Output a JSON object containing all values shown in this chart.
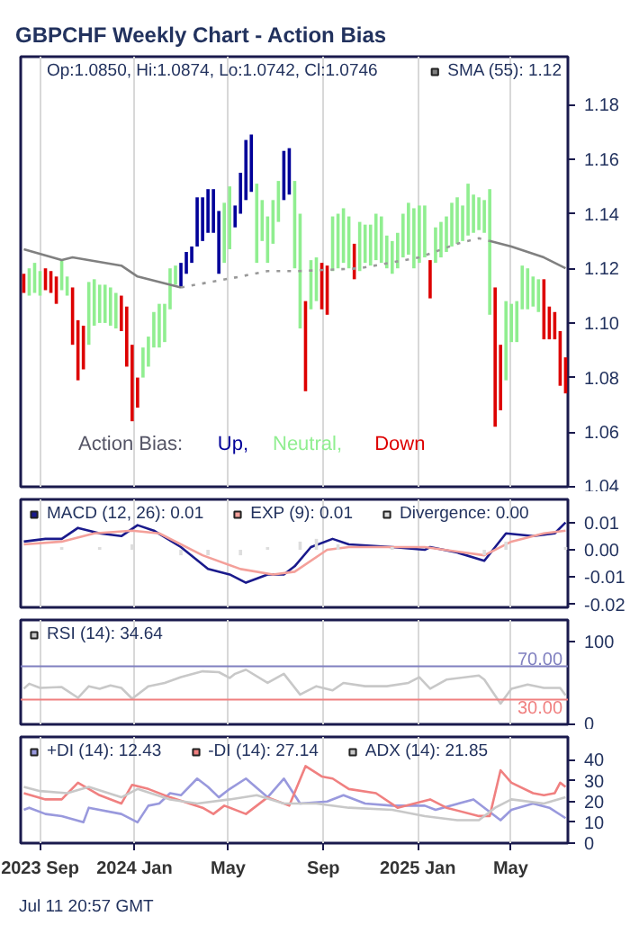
{
  "chart_data": [
    {
      "type": "bar",
      "title": "GBPCHF Weekly Chart - Action Bias",
      "legend": "top right",
      "legend_title": "Action Bias:",
      "grid": "x",
      "tick_labels": "y",
      "annotations": [
        "Op:1.0850, Hi:1.0874, Lo:1.0742, Cl:1.0746"
      ],
      "xlim": [
        "2023-08-07",
        "2025-07-14"
      ],
      "xticks": [
        {
          "value": "2023-09-01",
          "label": null
        },
        {
          "value": "2024-01-01",
          "label": null
        },
        {
          "value": "2024-05-01",
          "label": null
        },
        {
          "value": "2024-09-01",
          "label": null
        },
        {
          "value": "2025-01-01",
          "label": null
        },
        {
          "value": "2025-05-01",
          "label": null
        }
      ],
      "ylim": [
        1.04,
        1.1975
      ],
      "yticks": [
        1.04,
        1.06,
        1.08,
        {
          "value": 1.1,
          "label": "1.10"
        },
        1.12,
        1.14,
        1.16,
        1.18
      ],
      "series": [
        {
          "name": "Up,",
          "color": "#000099",
          "x": [
            "2024-03-01",
            "2024-03-08",
            "2024-03-15",
            "2024-03-22",
            "2024-03-29",
            "2024-04-05",
            "2024-04-12",
            "2024-04-19",
            "2024-05-10",
            "2024-05-17",
            "2024-05-24",
            "2024-05-31",
            "2024-07-12",
            "2024-07-19"
          ],
          "base": [
            1.113,
            1.118,
            1.122,
            1.128,
            1.13,
            1.133,
            1.133,
            1.118,
            1.135,
            1.14,
            1.145,
            1.148,
            1.145,
            1.147
          ],
          "values": [
            0.009,
            0.008,
            0.006,
            0.018,
            0.016,
            0.016,
            0.016,
            0.023,
            0.008,
            0.015,
            0.022,
            0.021,
            0.018,
            0.017
          ]
        },
        {
          "name": "Neutral,",
          "color": "#90ee90",
          "x": [
            "2023-08-18",
            "2023-08-25",
            "2023-09-01",
            "2023-09-29",
            "2023-10-06",
            "2023-11-03",
            "2023-11-10",
            "2023-11-17",
            "2023-11-24",
            "2023-12-01",
            "2023-12-08",
            "2024-01-12",
            "2024-01-19",
            "2024-01-26",
            "2024-02-02",
            "2024-02-09",
            "2024-02-16",
            "2024-02-23",
            "2024-04-26",
            "2024-05-03",
            "2024-06-07",
            "2024-06-14",
            "2024-06-21",
            "2024-06-28",
            "2024-07-05",
            "2024-07-26",
            "2024-08-02",
            "2024-08-16",
            "2024-08-23",
            "2024-09-13",
            "2024-09-20",
            "2024-09-27",
            "2024-10-04",
            "2024-10-18",
            "2024-10-25",
            "2024-11-01",
            "2024-11-08",
            "2024-11-15",
            "2024-11-22",
            "2024-11-29",
            "2024-12-06",
            "2024-12-13",
            "2024-12-20",
            "2024-12-27",
            "2025-01-03",
            "2025-01-10",
            "2025-01-24",
            "2025-01-31",
            "2025-02-07",
            "2025-02-14",
            "2025-02-21",
            "2025-02-28",
            "2025-03-07",
            "2025-03-14",
            "2025-03-21",
            "2025-03-28",
            "2025-04-04",
            "2025-04-25",
            "2025-05-02",
            "2025-05-09",
            "2025-05-16",
            "2025-05-23",
            "2025-05-30",
            "2025-06-06"
          ],
          "base": [
            1.11,
            1.111,
            1.11,
            1.112,
            1.11,
            1.092,
            1.099,
            1.1,
            1.1,
            1.099,
            1.098,
            1.08,
            1.084,
            1.091,
            1.091,
            1.093,
            1.105,
            1.114,
            1.122,
            1.127,
            1.122,
            1.13,
            1.122,
            1.129,
            1.137,
            1.12,
            1.098,
            1.105,
            1.108,
            1.119,
            1.12,
            1.122,
            1.12,
            1.119,
            1.122,
            1.121,
            1.123,
            1.122,
            1.12,
            1.118,
            1.12,
            1.124,
            1.125,
            1.12,
            1.122,
            1.124,
            1.122,
            1.124,
            1.126,
            1.128,
            1.129,
            1.13,
            1.132,
            1.133,
            1.134,
            1.133,
            1.103,
            1.079,
            1.093,
            1.093,
            1.105,
            1.105,
            1.106,
            1.104
          ],
          "values": [
            0.01,
            0.011,
            0.009,
            0.011,
            0.007,
            0.023,
            0.017,
            0.014,
            0.014,
            0.014,
            0.013,
            0.011,
            0.011,
            0.013,
            0.016,
            0.014,
            0.015,
            0.007,
            0.022,
            0.023,
            0.029,
            0.015,
            0.017,
            0.016,
            0.015,
            0.032,
            0.042,
            0.018,
            0.016,
            0.02,
            0.02,
            0.02,
            0.019,
            0.018,
            0.014,
            0.015,
            0.017,
            0.017,
            0.012,
            0.012,
            0.013,
            0.016,
            0.019,
            0.022,
            0.021,
            0.019,
            0.013,
            0.013,
            0.013,
            0.016,
            0.017,
            0.013,
            0.019,
            0.014,
            0.012,
            0.012,
            0.046,
            0.029,
            0.014,
            0.015,
            0.016,
            0.015,
            0.011,
            0.012
          ]
        },
        {
          "name": "Down",
          "color": "#dd0000",
          "x": [
            "2023-08-11",
            "2023-09-08",
            "2023-09-15",
            "2023-09-22",
            "2023-10-13",
            "2023-10-20",
            "2023-10-27",
            "2023-12-15",
            "2023-12-22",
            "2023-12-29",
            "2024-01-05",
            "2024-08-09",
            "2024-08-30",
            "2024-09-06",
            "2024-10-11",
            "2025-01-17",
            "2025-04-11",
            "2025-04-18",
            "2025-06-13",
            "2025-06-20",
            "2025-06-27",
            "2025-07-04",
            "2025-07-11"
          ],
          "base": [
            1.111,
            1.112,
            1.111,
            1.107,
            1.092,
            1.079,
            1.083,
            1.097,
            1.084,
            1.064,
            1.069,
            1.075,
            1.105,
            1.103,
            1.116,
            1.109,
            1.062,
            1.068,
            1.094,
            1.094,
            1.094,
            1.077,
            1.0742
          ],
          "values": [
            0.007,
            0.008,
            0.008,
            0.01,
            0.021,
            0.022,
            0.016,
            0.013,
            0.022,
            0.028,
            0.011,
            0.033,
            0.017,
            0.018,
            0.013,
            0.014,
            0.051,
            0.024,
            0.022,
            0.012,
            0.01,
            0.02,
            0.0132
          ]
        },
        {
          "type": "line",
          "name": "SMA (55): 1.12",
          "color": "#808080",
          "x": [
            "2023-08-11",
            "2023-09-29",
            "2023-10-13",
            "2023-12-15",
            "2024-01-05",
            "2024-03-01"
          ],
          "values": [
            1.127,
            1.123,
            1.124,
            1.121,
            1.117,
            1.113
          ]
        },
        {
          "type": "line",
          "color": "#999999",
          "line_style": "dotted",
          "x": [
            "2024-03-01",
            "2024-05-17",
            "2024-06-21",
            "2024-08-02",
            "2024-10-18",
            "2025-01-03",
            "2025-02-21",
            "2025-03-21",
            "2025-04-04"
          ],
          "values": [
            1.113,
            1.117,
            1.119,
            1.119,
            1.12,
            1.124,
            1.129,
            1.131,
            1.13
          ]
        },
        {
          "type": "line",
          "color": "#808080",
          "x": [
            "2025-04-04",
            "2025-05-02",
            "2025-06-13",
            "2025-07-11"
          ],
          "values": [
            1.13,
            1.128,
            1.124,
            1.12
          ]
        }
      ]
    },
    {
      "type": "line",
      "legend": "top left",
      "grid": "x",
      "tick_labels": "y",
      "xlim": [
        "2023-08-07",
        "2025-07-14"
      ],
      "xticks": [
        {
          "value": "2023-09-01",
          "label": null
        },
        {
          "value": "2024-01-01",
          "label": null
        },
        {
          "value": "2024-05-01",
          "label": null
        },
        {
          "value": "2024-09-01",
          "label": null
        },
        {
          "value": "2025-01-01",
          "label": null
        },
        {
          "value": "2025-05-01",
          "label": null
        }
      ],
      "ylim": [
        -0.021,
        0.0184
      ],
      "yticks": [
        -0.02,
        -0.01,
        {
          "value": 0,
          "label": "0.00"
        },
        0.01
      ],
      "series": [
        {
          "name": "MACD (12, 26): 0.01",
          "color": "#1a1a8c",
          "x": [
            "2023-08-11",
            "2023-09-08",
            "2023-09-29",
            "2023-10-20",
            "2023-11-17",
            "2023-12-15",
            "2024-01-05",
            "2024-01-26",
            "2024-03-01",
            "2024-04-05",
            "2024-05-03",
            "2024-05-24",
            "2024-06-21",
            "2024-07-12",
            "2024-07-26",
            "2024-08-16",
            "2024-09-13",
            "2024-10-04",
            "2024-11-29",
            "2025-01-10",
            "2025-01-17",
            "2025-02-21",
            "2025-03-28",
            "2025-04-11",
            "2025-04-25",
            "2025-05-30",
            "2025-06-27",
            "2025-07-11"
          ],
          "values": [
            0.003,
            0.004,
            0.004,
            0.008,
            0.006,
            0.005,
            0.009,
            0.007,
            0.001,
            -0.007,
            -0.009,
            -0.012,
            -0.009,
            -0.009,
            -0.006,
            0.001,
            0.004,
            0.002,
            0.001,
            0.0,
            0.001,
            -0.001,
            -0.004,
            0.001,
            0.006,
            0.005,
            0.006,
            0.01
          ]
        },
        {
          "name": "EXP (9): 0.01",
          "color": "#f4a09a",
          "x": [
            "2023-08-11",
            "2023-09-29",
            "2023-11-10",
            "2023-12-29",
            "2024-02-02",
            "2024-03-29",
            "2024-05-17",
            "2024-06-28",
            "2024-07-26",
            "2024-09-06",
            "2024-10-04",
            "2025-01-10",
            "2025-03-28",
            "2025-05-02",
            "2025-06-13",
            "2025-07-11"
          ],
          "values": [
            0.002,
            0.003,
            0.006,
            0.007,
            0.006,
            -0.002,
            -0.007,
            -0.009,
            -0.008,
            0.0,
            0.001,
            0.001,
            -0.002,
            0.003,
            0.006,
            0.007
          ]
        },
        {
          "type": "bar",
          "name": "Divergence: 0.00",
          "color": "#dddddd",
          "x": [
            "2023-09-29",
            "2023-11-17",
            "2023-12-29",
            "2024-02-02",
            "2024-03-01",
            "2024-04-05",
            "2024-05-17",
            "2024-06-21",
            "2024-08-02",
            "2024-08-23",
            "2024-09-20",
            "2024-11-29",
            "2025-02-21",
            "2025-03-28",
            "2025-04-25",
            "2025-07-11"
          ],
          "values": [
            0.001,
            0.001,
            0.002,
            null,
            -0.002,
            -0.002,
            -0.002,
            0.001,
            0.003,
            0.004,
            0.002,
            0.001,
            null,
            -0.002,
            0.003,
            0.001
          ]
        }
      ]
    },
    {
      "type": "line",
      "legend": "top left",
      "grid": "x",
      "tick_labels": "y",
      "xlim": [
        "2023-08-07",
        "2025-07-14"
      ],
      "xticks": [
        {
          "value": "2023-09-01",
          "label": null
        },
        {
          "value": "2024-01-01",
          "label": null
        },
        {
          "value": "2024-05-01",
          "label": null
        },
        {
          "value": "2024-09-01",
          "label": null
        },
        {
          "value": "2025-01-01",
          "label": null
        },
        {
          "value": "2025-05-01",
          "label": null
        }
      ],
      "ylim": [
        0,
        126
      ],
      "yticks": [
        0,
        100
      ],
      "ref_lines": [
        {
          "axis": "y",
          "value": 70,
          "label": "70.00",
          "color": "#8080c0"
        },
        {
          "axis": "y",
          "value": 30,
          "label": "30.00",
          "color": "#f08080"
        }
      ],
      "series": [
        {
          "name": "RSI (14): 34.64",
          "color": "#c8c8c8",
          "x": [
            "2023-08-11",
            "2023-08-18",
            "2023-09-01",
            "2023-09-29",
            "2023-10-20",
            "2023-11-03",
            "2023-11-17",
            "2023-12-01",
            "2023-12-15",
            "2023-12-29",
            "2024-01-19",
            "2024-02-09",
            "2024-03-01",
            "2024-03-29",
            "2024-04-19",
            "2024-05-03",
            "2024-05-10",
            "2024-05-24",
            "2024-06-21",
            "2024-07-12",
            "2024-08-02",
            "2024-08-23",
            "2024-09-13",
            "2024-09-27",
            "2024-10-25",
            "2024-11-22",
            "2024-12-20",
            "2025-01-03",
            "2025-01-17",
            "2025-02-07",
            "2025-03-21",
            "2025-03-28",
            "2025-04-18",
            "2025-05-02",
            "2025-05-23",
            "2025-06-13",
            "2025-07-04",
            "2025-07-11"
          ],
          "values": [
            43,
            49,
            44,
            45,
            32,
            46,
            43,
            47,
            44,
            31,
            46,
            50,
            57,
            64,
            63,
            56,
            61,
            66,
            50,
            61,
            36,
            46,
            41,
            50,
            46,
            46,
            50,
            57,
            43,
            54,
            59,
            54,
            25,
            43,
            48,
            44,
            44,
            35
          ]
        }
      ]
    },
    {
      "type": "line",
      "legend": "top left",
      "grid": "x",
      "annotations": [
        "Jul 11 20:57 GMT"
      ],
      "xlim": [
        "2023-08-07",
        "2025-07-14"
      ],
      "xticks": [
        {
          "value": "2023-09-01",
          "label": "2023 Sep"
        },
        {
          "value": "2024-01-01",
          "label": "2024 Jan"
        },
        {
          "value": "2024-05-01",
          "label": "May"
        },
        {
          "value": "2024-09-01",
          "label": "Sep"
        },
        {
          "value": "2025-01-01",
          "label": "2025 Jan"
        },
        {
          "value": "2025-05-01",
          "label": "May"
        }
      ],
      "ylim": [
        0,
        51
      ],
      "yticks": [
        0,
        10,
        20,
        30,
        40
      ],
      "series": [
        {
          "name": "+DI (14): 12.43",
          "color": "#9999dd",
          "x": [
            "2023-08-11",
            "2023-08-18",
            "2023-09-08",
            "2023-09-29",
            "2023-10-27",
            "2023-11-03",
            "2023-12-15",
            "2024-01-05",
            "2024-01-19",
            "2024-02-02",
            "2024-02-16",
            "2024-03-01",
            "2024-03-22",
            "2024-04-05",
            "2024-04-19",
            "2024-05-03",
            "2024-05-24",
            "2024-06-21",
            "2024-07-12",
            "2024-08-02",
            "2024-09-06",
            "2024-09-27",
            "2024-10-25",
            "2024-11-29",
            "2025-01-10",
            "2025-01-24",
            "2025-03-14",
            "2025-03-28",
            "2025-04-18",
            "2025-05-02",
            "2025-05-30",
            "2025-06-20",
            "2025-07-11"
          ],
          "values": [
            16,
            17,
            14,
            13,
            10,
            17,
            14,
            10,
            18,
            19,
            24,
            23,
            31,
            27,
            22,
            26,
            31,
            22,
            31,
            19,
            20,
            23,
            19,
            18,
            18,
            16,
            21,
            17,
            11,
            16,
            19,
            17,
            12
          ]
        },
        {
          "name": "-DI (14): 27.14",
          "color": "#f08080",
          "x": [
            "2023-08-11",
            "2023-09-08",
            "2023-09-29",
            "2023-10-20",
            "2023-11-17",
            "2023-12-15",
            "2023-12-29",
            "2024-01-19",
            "2024-02-16",
            "2024-03-29",
            "2024-04-12",
            "2024-04-26",
            "2024-05-24",
            "2024-06-21",
            "2024-07-19",
            "2024-08-09",
            "2024-08-30",
            "2024-09-13",
            "2024-10-04",
            "2024-11-08",
            "2024-12-06",
            "2025-01-17",
            "2025-02-07",
            "2025-03-21",
            "2025-04-04",
            "2025-04-18",
            "2025-05-02",
            "2025-05-30",
            "2025-06-13",
            "2025-06-27",
            "2025-07-04",
            "2025-07-11"
          ],
          "values": [
            24,
            21,
            21,
            29,
            23,
            19,
            28,
            26,
            22,
            17,
            14,
            18,
            14,
            22,
            18,
            37,
            32,
            31,
            26,
            24,
            17,
            21,
            17,
            13,
            13,
            35,
            29,
            24,
            23,
            24,
            29,
            27
          ]
        },
        {
          "name": "ADX (14): 21.85",
          "color": "#c8c8c8",
          "x": [
            "2023-08-11",
            "2023-09-01",
            "2023-10-06",
            "2023-11-03",
            "2023-12-15",
            "2024-01-05",
            "2024-02-16",
            "2024-03-22",
            "2024-05-03",
            "2024-06-07",
            "2024-07-12",
            "2024-08-23",
            "2024-10-04",
            "2024-11-29",
            "2025-01-10",
            "2025-02-21",
            "2025-03-21",
            "2025-04-11",
            "2025-05-02",
            "2025-06-13",
            "2025-07-11"
          ],
          "values": [
            27,
            25,
            24,
            27,
            22,
            26,
            21,
            19,
            21,
            23,
            19,
            19,
            17,
            16,
            13,
            11,
            11,
            17,
            21,
            19,
            22
          ]
        }
      ]
    }
  ]
}
